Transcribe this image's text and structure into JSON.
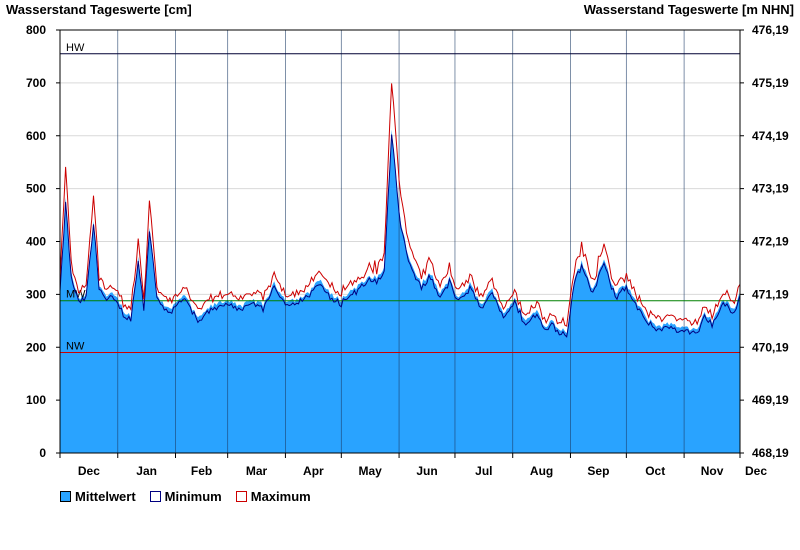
{
  "chart_data": {
    "type": "area",
    "title_left": "Wasserstand Tageswerte [cm]",
    "title_right": "Wasserstand Tageswerte [m NHN]",
    "ylim": [
      0,
      800
    ],
    "y_ticks": [
      0,
      100,
      200,
      300,
      400,
      500,
      600,
      700,
      800
    ],
    "y2_ticks": [
      "468,19",
      "469,19",
      "470,19",
      "471,19",
      "472,19",
      "473,19",
      "474,19",
      "475,19",
      "476,19"
    ],
    "x_months": [
      "Dec",
      "Jan",
      "Feb",
      "Mar",
      "Apr",
      "May",
      "Jun",
      "Jul",
      "Aug",
      "Sep",
      "Oct",
      "Nov",
      "Dec"
    ],
    "month_days": [
      31,
      31,
      28,
      31,
      30,
      31,
      30,
      31,
      31,
      30,
      31,
      30
    ],
    "reference_lines": [
      {
        "label": "HW",
        "value": 755,
        "color": "#000033"
      },
      {
        "label": "MW",
        "value": 288,
        "color": "#008000"
      },
      {
        "label": "NW",
        "value": 190,
        "color": "#cc0000"
      }
    ],
    "mean_profile_days": [
      0,
      3,
      6,
      10,
      14,
      18,
      21,
      25,
      28,
      31,
      35,
      38,
      42,
      45,
      48,
      52,
      56,
      60,
      63,
      67,
      71,
      75,
      80,
      86,
      92,
      97,
      103,
      109,
      115,
      121,
      127,
      133,
      139,
      145,
      151,
      157,
      162,
      167,
      170,
      174,
      178,
      183,
      188,
      194,
      199,
      204,
      209,
      214,
      220,
      226,
      232,
      238,
      244,
      250,
      256,
      260,
      264,
      268,
      272,
      276,
      280,
      286,
      292,
      298,
      304,
      310,
      316,
      322,
      328,
      333,
      338,
      342,
      346,
      350,
      356,
      362,
      365
    ],
    "mean_profile_values": [
      310,
      480,
      340,
      290,
      300,
      440,
      320,
      295,
      300,
      290,
      265,
      260,
      370,
      280,
      430,
      300,
      280,
      275,
      285,
      300,
      270,
      255,
      275,
      285,
      290,
      275,
      290,
      280,
      320,
      290,
      290,
      300,
      330,
      300,
      290,
      310,
      320,
      335,
      330,
      350,
      610,
      430,
      360,
      320,
      340,
      300,
      330,
      290,
      320,
      280,
      310,
      265,
      290,
      250,
      270,
      240,
      250,
      235,
      230,
      330,
      360,
      310,
      370,
      300,
      320,
      280,
      250,
      240,
      245,
      240,
      235,
      230,
      265,
      250,
      290,
      270,
      310
    ],
    "series": [
      {
        "name": "Mittelwert",
        "color": "#29a3ff"
      },
      {
        "name": "Minimum",
        "color": "#000080"
      },
      {
        "name": "Maximum",
        "color": "#cc0000"
      }
    ]
  }
}
